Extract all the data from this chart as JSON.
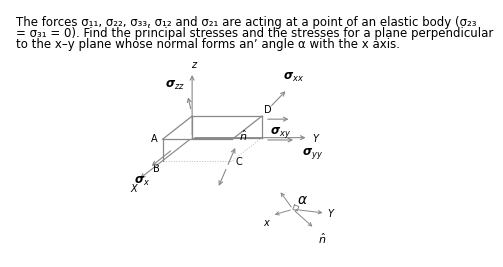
{
  "bg_color": "#ffffff",
  "line_color": "#888888",
  "text_color": "#000000",
  "fontsize_body": 8.5,
  "text_line1": "The forces σ₁₁, σ₂₂, σ₃₃, σ₁₂ and σ₂₁ are acting at a point of an elastic body (σ₂₃",
  "text_line2": "= σ₃₁ = 0). Find the principal stresses and the stresses for a plane perpendicular",
  "text_line3": "to the x–y plane whose normal forms anʼ angle α with the x axis."
}
